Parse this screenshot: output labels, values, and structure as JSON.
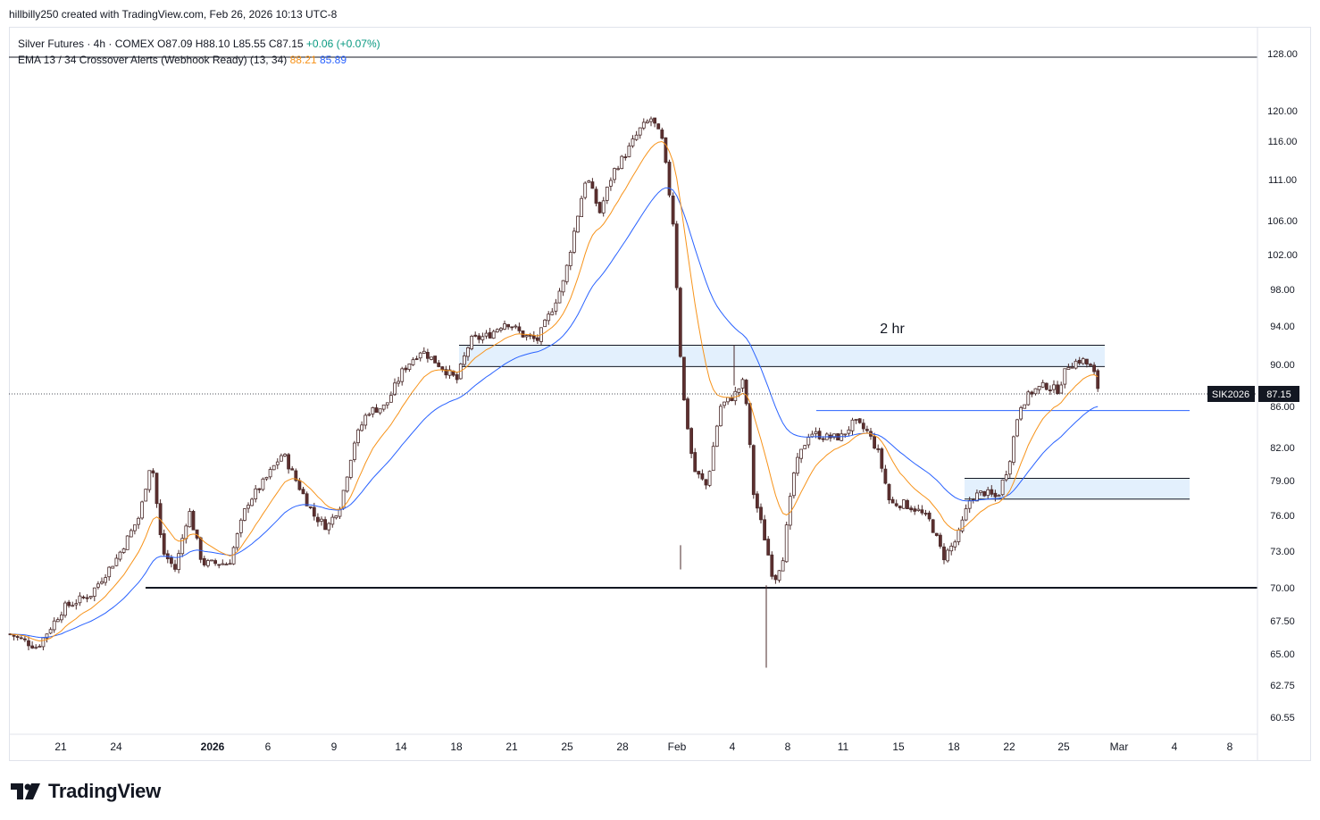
{
  "header": {
    "text": "hillbilly250 created with TradingView.com, Feb 26, 2026 10:13 UTC-8"
  },
  "legend": {
    "symbol": "Silver Futures · 4h · COMEX",
    "open": "O87.09",
    "high": "H88.10",
    "low": "L85.55",
    "close": "C87.15",
    "change": "+0.06 (+0.07%)",
    "indicator": "EMA 13 / 34 Crossover Alerts (Webhook Ready) (13, 34)",
    "ema_fast": "88.21",
    "ema_slow": "85.89"
  },
  "price_label": {
    "ticker": "SIK2026",
    "price": "87.15"
  },
  "annotation": "2 hr",
  "brand": "TradingView",
  "colors": {
    "up": "#ffffff",
    "down": "#5d2f2f",
    "ema_fast": "#f7931a",
    "ema_slow": "#2962ff",
    "zone": "#e3f0fd"
  },
  "chart_data": {
    "type": "candlestick",
    "instrument": "Silver Futures",
    "timeframe": "4h",
    "y_axis_labels": [
      "128.00",
      "120.00",
      "116.00",
      "111.00",
      "106.00",
      "102.00",
      "98.00",
      "94.00",
      "90.00",
      "86.00",
      "82.00",
      "79.00",
      "76.00",
      "73.00",
      "70.00",
      "67.50",
      "65.00",
      "62.75",
      "60.55"
    ],
    "x_axis_labels": [
      {
        "label": "21",
        "bold": false
      },
      {
        "label": "24",
        "bold": false
      },
      {
        "label": "2026",
        "bold": true
      },
      {
        "label": "6",
        "bold": false
      },
      {
        "label": "9",
        "bold": false
      },
      {
        "label": "14",
        "bold": false
      },
      {
        "label": "18",
        "bold": false
      },
      {
        "label": "21",
        "bold": false
      },
      {
        "label": "25",
        "bold": false
      },
      {
        "label": "28",
        "bold": false
      },
      {
        "label": "Feb",
        "bold": false
      },
      {
        "label": "4",
        "bold": false
      },
      {
        "label": "8",
        "bold": false
      },
      {
        "label": "11",
        "bold": false
      },
      {
        "label": "15",
        "bold": false
      },
      {
        "label": "18",
        "bold": false
      },
      {
        "label": "22",
        "bold": false
      },
      {
        "label": "25",
        "bold": false
      },
      {
        "label": "Mar",
        "bold": false
      },
      {
        "label": "4",
        "bold": false
      },
      {
        "label": "8",
        "bold": false
      }
    ],
    "last_price": 87.15,
    "ema": [
      {
        "name": "EMA 13",
        "value": 88.21
      },
      {
        "name": "EMA 34",
        "value": 85.89
      }
    ],
    "horizontal_lines": [
      127.5,
      70.0,
      85.6
    ],
    "zones": [
      {
        "label": "2 hr",
        "from": 89.8,
        "to": 92.0
      },
      {
        "from": 77.4,
        "to": 79.2
      }
    ],
    "price_path": [
      [
        "x",
        0,
        66.5
      ],
      [
        "x",
        30,
        65.5
      ],
      [
        "x",
        60,
        68.5
      ],
      [
        "x",
        90,
        69.5
      ],
      [
        "x",
        120,
        72.5
      ],
      [
        "x",
        145,
        76.0
      ],
      [
        "x",
        158,
        81.0
      ],
      [
        "x",
        170,
        73.0
      ],
      [
        "x",
        185,
        71.5
      ],
      [
        "x",
        200,
        76.5
      ],
      [
        "x",
        215,
        72.0
      ],
      [
        "x",
        230,
        72.0
      ],
      [
        "x",
        245,
        72.0
      ],
      [
        "x",
        265,
        77.0
      ],
      [
        "x",
        285,
        79.0
      ],
      [
        "x",
        305,
        81.5
      ],
      [
        "x",
        320,
        79.0
      ],
      [
        "x",
        340,
        76.0
      ],
      [
        "x",
        355,
        75.0
      ],
      [
        "x",
        370,
        77.0
      ],
      [
        "x",
        385,
        82.5
      ],
      [
        "x",
        400,
        85.5
      ],
      [
        "x",
        420,
        86.0
      ],
      [
        "x",
        440,
        89.5
      ],
      [
        "x",
        460,
        91.5
      ],
      [
        "x",
        480,
        90.0
      ],
      [
        "x",
        500,
        88.5
      ],
      [
        "x",
        515,
        92.5
      ],
      [
        "x",
        535,
        93.0
      ],
      [
        "x",
        555,
        94.5
      ],
      [
        "x",
        575,
        93.0
      ],
      [
        "x",
        590,
        92.5
      ],
      [
        "x",
        605,
        95.5
      ],
      [
        "x",
        620,
        99.0
      ],
      [
        "x",
        632,
        105.0
      ],
      [
        "x",
        645,
        111.5
      ],
      [
        "x",
        660,
        107.0
      ],
      [
        "x",
        675,
        112.0
      ],
      [
        "x",
        690,
        114.5
      ],
      [
        "x",
        705,
        117.5
      ],
      [
        "x",
        718,
        119.0
      ],
      [
        "x",
        730,
        116.0
      ],
      [
        "x",
        742,
        106.0
      ],
      [
        "x",
        752,
        88.0
      ],
      [
        "x",
        765,
        80.0
      ],
      [
        "x",
        780,
        78.5
      ],
      [
        "x",
        795,
        86.0
      ],
      [
        "x",
        810,
        87.0
      ],
      [
        "x",
        822,
        88.5
      ],
      [
        "x",
        832,
        78.0
      ],
      [
        "x",
        845,
        74.0
      ],
      [
        "x",
        855,
        70.5
      ],
      [
        "x",
        865,
        72.5
      ],
      [
        "x",
        878,
        80.0
      ],
      [
        "x",
        895,
        83.5
      ],
      [
        "x",
        912,
        83.0
      ],
      [
        "x",
        930,
        83.0
      ],
      [
        "x",
        945,
        84.5
      ],
      [
        "x",
        960,
        83.5
      ],
      [
        "x",
        972,
        81.5
      ],
      [
        "x",
        985,
        77.0
      ],
      [
        "x",
        1000,
        77.0
      ],
      [
        "x",
        1015,
        76.5
      ],
      [
        "x",
        1030,
        75.5
      ],
      [
        "x",
        1045,
        72.5
      ],
      [
        "x",
        1060,
        74.0
      ],
      [
        "x",
        1075,
        77.5
      ],
      [
        "x",
        1090,
        78.0
      ],
      [
        "x",
        1105,
        77.5
      ],
      [
        "x",
        1118,
        80.5
      ],
      [
        "x",
        1130,
        86.0
      ],
      [
        "x",
        1145,
        87.5
      ],
      [
        "x",
        1160,
        88.0
      ],
      [
        "x",
        1172,
        87.5
      ],
      [
        "x",
        1185,
        90.0
      ],
      [
        "x",
        1200,
        90.5
      ],
      [
        "x",
        1212,
        89.5
      ],
      [
        "x",
        1220,
        87.15
      ]
    ]
  }
}
